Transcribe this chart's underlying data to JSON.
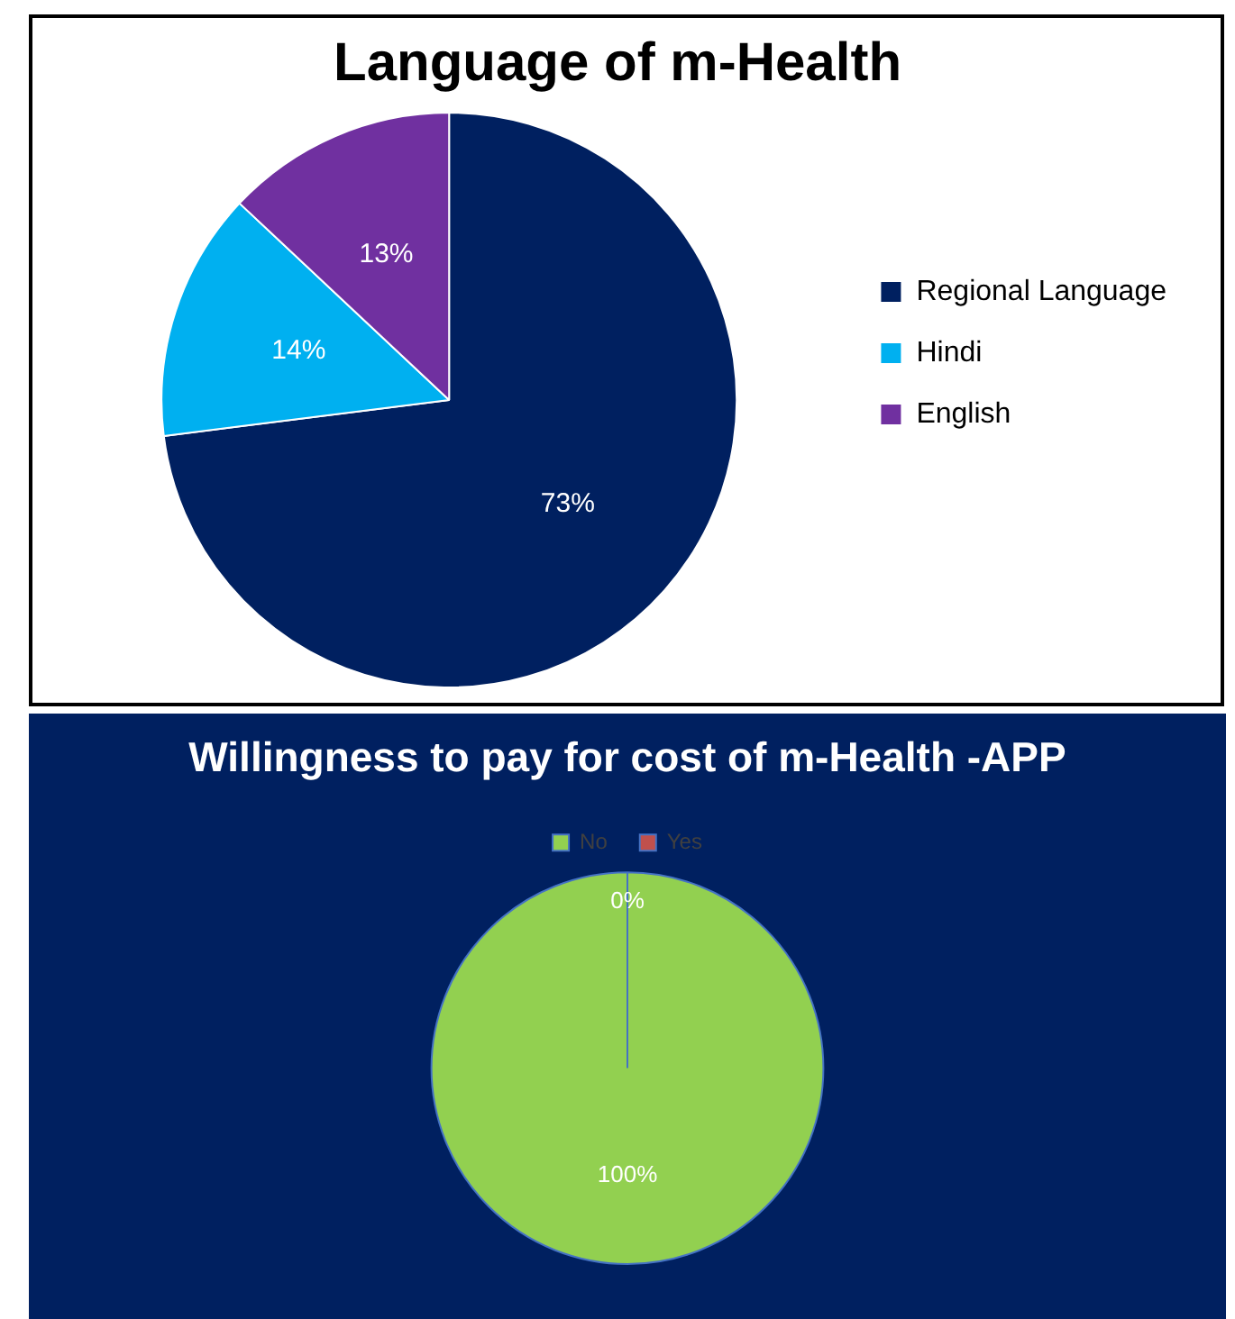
{
  "chart_data": [
    {
      "type": "pie",
      "title": "Language of m-Health",
      "categories": [
        "Regional Language",
        "Hindi",
        "English"
      ],
      "values": [
        73,
        14,
        13
      ],
      "colors": [
        "#002060",
        "#00b0f0",
        "#7030a0"
      ],
      "value_labels": [
        "73%",
        "14%",
        "13%"
      ],
      "legend": "right"
    },
    {
      "type": "pie",
      "title": "Willingness to pay for cost of m-Health -APP",
      "categories": [
        "No",
        "Yes"
      ],
      "values": [
        100,
        0
      ],
      "colors": [
        "#92d050",
        "#c0504d"
      ],
      "value_labels": [
        "100%",
        "0%"
      ],
      "legend": "top"
    }
  ]
}
